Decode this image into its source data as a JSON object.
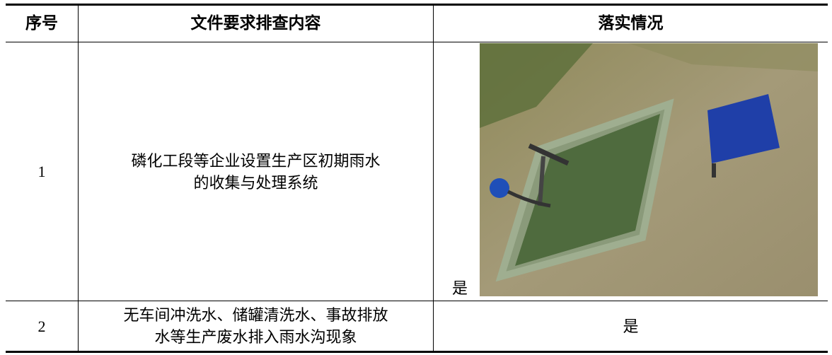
{
  "table": {
    "header": [
      "序号",
      "文件要求排查内容",
      "落实情况"
    ],
    "rows": [
      [
        "1",
        [
          "磷化工段等企业设置生产区初期雨水",
          "的收集与处理系统"
        ],
        "是"
      ],
      [
        "2",
        [
          "无车间冲洗水、储罐清洗水、事故排放",
          "水等生产废水排入雨水沟现象"
        ],
        "是"
      ]
    ]
  }
}
